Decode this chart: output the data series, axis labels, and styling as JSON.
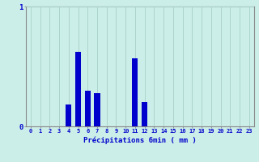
{
  "hours": [
    0,
    1,
    2,
    3,
    4,
    5,
    6,
    7,
    8,
    9,
    10,
    11,
    12,
    13,
    14,
    15,
    16,
    17,
    18,
    19,
    20,
    21,
    22,
    23
  ],
  "values": [
    0,
    0,
    0,
    0,
    0.18,
    0.62,
    0.3,
    0.28,
    0,
    0,
    0,
    0.57,
    0.2,
    0,
    0,
    0,
    0,
    0,
    0,
    0,
    0,
    0,
    0,
    0
  ],
  "bar_color": "#0000cc",
  "bg_color": "#cceee8",
  "grid_color": "#aad4cc",
  "axis_color": "#888888",
  "text_color": "#0000cc",
  "xlabel": "Précipitations 6min ( mm )",
  "ylim": [
    0,
    1.0
  ],
  "xlim": [
    -0.5,
    23.5
  ],
  "tick_labels": [
    "0",
    "1",
    "2",
    "3",
    "4",
    "5",
    "6",
    "7",
    "8",
    "9",
    "10",
    "11",
    "12",
    "13",
    "14",
    "15",
    "16",
    "17",
    "18",
    "19",
    "20",
    "21",
    "22",
    "23"
  ]
}
